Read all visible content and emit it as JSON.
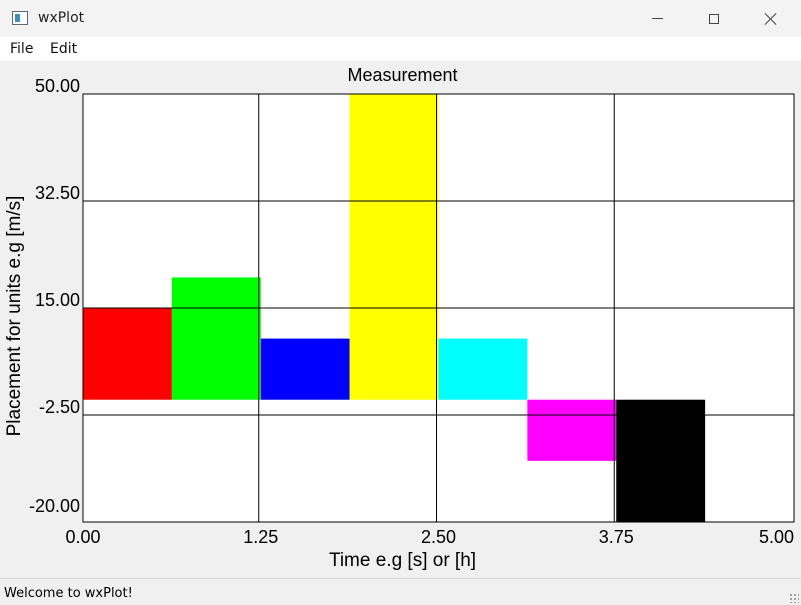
{
  "window": {
    "title": "wxPlot"
  },
  "menu": {
    "file": "File",
    "edit": "Edit"
  },
  "status": {
    "text": "Welcome to wxPlot!"
  },
  "colors": {
    "grid": "#000000",
    "plot_bg": "#ffffff"
  },
  "chart_data": {
    "type": "bar",
    "title": "Measurement",
    "xlabel": "Time e.g [s] or [h]",
    "ylabel": "Placement for units e.g [m/s]",
    "xlim": [
      0,
      5
    ],
    "ylim": [
      -20,
      50
    ],
    "xticks": [
      "0.00",
      "1.25",
      "2.50",
      "3.75",
      "5.00"
    ],
    "yticks": [
      "50.00",
      "32.50",
      "15.00",
      "-2.50",
      "-20.00"
    ],
    "grid": true,
    "bars": [
      {
        "x0": 0.0,
        "x1": 0.625,
        "value": 15,
        "color": "#ff0000"
      },
      {
        "x0": 0.625,
        "x1": 1.25,
        "value": 20,
        "color": "#00ff00"
      },
      {
        "x0": 1.25,
        "x1": 1.875,
        "value": 10,
        "color": "#0000ff"
      },
      {
        "x0": 1.875,
        "x1": 2.5,
        "value": 50,
        "color": "#ffff00"
      },
      {
        "x0": 2.5,
        "x1": 3.125,
        "value": 10,
        "color": "#00ffff"
      },
      {
        "x0": 3.125,
        "x1": 3.75,
        "value": -10,
        "color": "#ff00ff"
      },
      {
        "x0": 3.75,
        "x1": 4.375,
        "value": -20,
        "color": "#000000"
      }
    ]
  }
}
